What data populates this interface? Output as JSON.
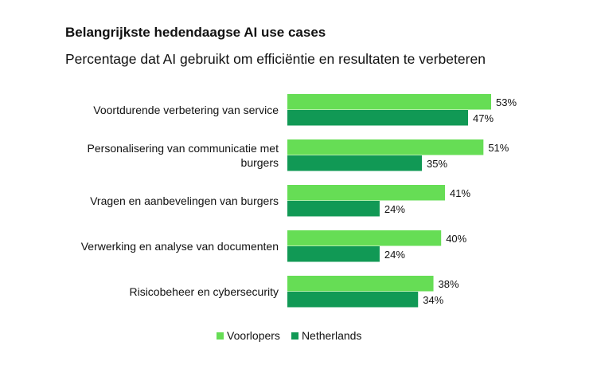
{
  "chart_data": {
    "type": "bar",
    "orientation": "horizontal",
    "title": "Belangrijkste hedendaagse AI use cases",
    "subtitle": "Percentage dat AI gebruikt om efficiëntie en resultaten te verbeteren",
    "categories": [
      [
        "Voortdurende verbetering van service"
      ],
      [
        "Personalisering van communicatie met",
        "burgers"
      ],
      [
        "Vragen en aanbevelingen van burgers"
      ],
      [
        "Verwerking en analyse van documenten"
      ],
      [
        "Risicobeheer en cybersecurity"
      ]
    ],
    "series": [
      {
        "name": "Voorlopers",
        "color": "#66dd55",
        "values": [
          53,
          51,
          41,
          40,
          38
        ],
        "labels": [
          "53%",
          "51%",
          "41%",
          "40%",
          "38%"
        ]
      },
      {
        "name": "Netherlands",
        "color": "#119955",
        "values": [
          47,
          35,
          24,
          24,
          34
        ],
        "labels": [
          "47%",
          "35%",
          "24%",
          "24%",
          "34%"
        ]
      }
    ],
    "xlim": [
      0,
      60
    ],
    "grid": false,
    "legend_position": "bottom"
  }
}
